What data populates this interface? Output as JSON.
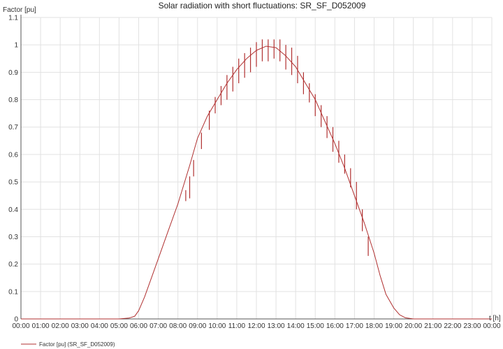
{
  "chart_data": {
    "type": "line",
    "title": "Solar radiation with short fluctuations: SR_SF_D052009",
    "ylabel": "Factor [pu]",
    "xlabel": "t [h]",
    "ylim": [
      0,
      1.1
    ],
    "xlim_hours": [
      0,
      24
    ],
    "y_ticks": [
      "0",
      "0.1",
      "0.2",
      "0.3",
      "0.4",
      "0.5",
      "0.6",
      "0.7",
      "0.8",
      "0.9",
      "1",
      "1.1"
    ],
    "x_ticks": [
      "00:00",
      "01:00",
      "02:00",
      "03:00",
      "04:00",
      "05:00",
      "06:00",
      "07:00",
      "08:00",
      "09:00",
      "10:00",
      "11:00",
      "12:00",
      "13:00",
      "14:00",
      "15:00",
      "16:00",
      "17:00",
      "18:00",
      "19:00",
      "20:00",
      "21:00",
      "22:00",
      "23:00",
      "00:00"
    ],
    "grid": true,
    "legend_position": "bottom-left",
    "series": [
      {
        "name": "Factor [pu] (SR_SF_D052009)",
        "color": "#b03030",
        "x": [
          0,
          5.0,
          5.5,
          5.8,
          6.0,
          6.3,
          6.7,
          7.0,
          7.5,
          8.0,
          8.3,
          8.6,
          9.0,
          9.5,
          10.0,
          10.5,
          11.0,
          11.5,
          12.0,
          12.5,
          13.0,
          13.5,
          14.0,
          14.5,
          15.0,
          15.5,
          16.0,
          16.5,
          17.0,
          17.5,
          18.0,
          18.3,
          18.6,
          19.0,
          19.3,
          19.6,
          20.0,
          24
        ],
        "y": [
          0,
          0,
          0.003,
          0.01,
          0.03,
          0.08,
          0.16,
          0.22,
          0.32,
          0.42,
          0.49,
          0.56,
          0.66,
          0.74,
          0.8,
          0.86,
          0.91,
          0.95,
          0.98,
          0.995,
          0.99,
          0.96,
          0.92,
          0.86,
          0.8,
          0.72,
          0.64,
          0.55,
          0.45,
          0.35,
          0.24,
          0.16,
          0.09,
          0.04,
          0.015,
          0.004,
          0,
          0
        ],
        "fluctuations": [
          {
            "x": 8.4,
            "low": 0.43,
            "high": 0.47
          },
          {
            "x": 8.6,
            "low": 0.44,
            "high": 0.52
          },
          {
            "x": 8.8,
            "low": 0.52,
            "high": 0.58
          },
          {
            "x": 9.2,
            "low": 0.62,
            "high": 0.68
          },
          {
            "x": 9.6,
            "low": 0.69,
            "high": 0.76
          },
          {
            "x": 9.9,
            "low": 0.75,
            "high": 0.81
          },
          {
            "x": 10.2,
            "low": 0.78,
            "high": 0.85
          },
          {
            "x": 10.5,
            "low": 0.8,
            "high": 0.89
          },
          {
            "x": 10.8,
            "low": 0.83,
            "high": 0.92
          },
          {
            "x": 11.1,
            "low": 0.86,
            "high": 0.95
          },
          {
            "x": 11.4,
            "low": 0.88,
            "high": 0.97
          },
          {
            "x": 11.7,
            "low": 0.9,
            "high": 0.99
          },
          {
            "x": 12.0,
            "low": 0.92,
            "high": 1.01
          },
          {
            "x": 12.3,
            "low": 0.94,
            "high": 1.02
          },
          {
            "x": 12.6,
            "low": 0.94,
            "high": 1.02
          },
          {
            "x": 12.9,
            "low": 0.95,
            "high": 1.02
          },
          {
            "x": 13.2,
            "low": 0.94,
            "high": 1.02
          },
          {
            "x": 13.5,
            "low": 0.91,
            "high": 1.0
          },
          {
            "x": 13.8,
            "low": 0.89,
            "high": 0.99
          },
          {
            "x": 14.1,
            "low": 0.86,
            "high": 0.96
          },
          {
            "x": 14.4,
            "low": 0.82,
            "high": 0.9
          },
          {
            "x": 14.7,
            "low": 0.79,
            "high": 0.86
          },
          {
            "x": 15.0,
            "low": 0.74,
            "high": 0.82
          },
          {
            "x": 15.3,
            "low": 0.7,
            "high": 0.78
          },
          {
            "x": 15.6,
            "low": 0.66,
            "high": 0.74
          },
          {
            "x": 15.9,
            "low": 0.61,
            "high": 0.7
          },
          {
            "x": 16.2,
            "low": 0.57,
            "high": 0.65
          },
          {
            "x": 16.5,
            "low": 0.53,
            "high": 0.6
          },
          {
            "x": 16.8,
            "low": 0.48,
            "high": 0.55
          },
          {
            "x": 17.1,
            "low": 0.4,
            "high": 0.5
          },
          {
            "x": 17.4,
            "low": 0.32,
            "high": 0.4
          },
          {
            "x": 17.7,
            "low": 0.23,
            "high": 0.3
          }
        ]
      }
    ]
  }
}
